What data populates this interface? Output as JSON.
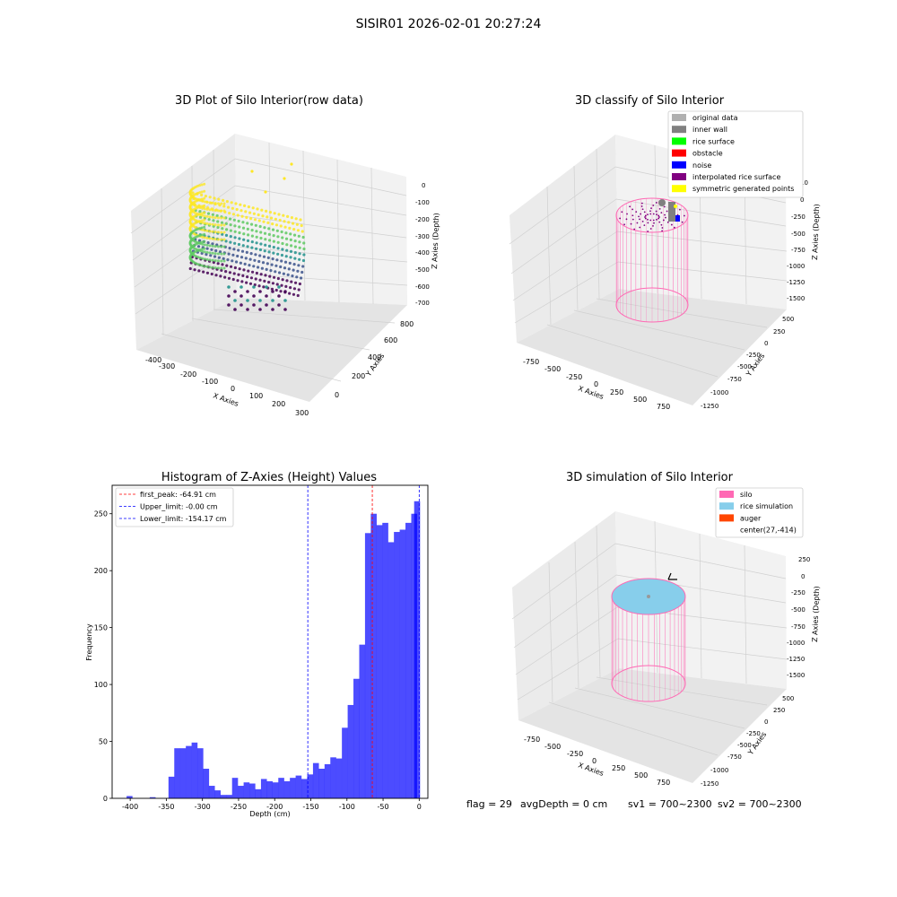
{
  "suptitle": "SISIR01 2026-02-01 20:27:24",
  "status_line": {
    "flag": "flag = 29",
    "avg_depth": "avgDepth = 0 cm",
    "sv1": "sv1 = 700~2300",
    "sv2": "sv2 = 700~2300"
  },
  "colors": {
    "histogram_bar": "#0000ff",
    "first_peak_line": "#ff0000",
    "limit_lines": "#0000ff",
    "silo": "#ff69b4",
    "rice_simulation": "#87ceeb",
    "auger": "#ff4500",
    "grid_pane": "#f2f2f2"
  },
  "chart_data": [
    {
      "type": "scatter",
      "projection": "3d",
      "title": "3D Plot of Silo Interior(row data)",
      "xlabel": "X Axies",
      "ylabel": "Y Axies",
      "zlabel": "Z Axies (Depth)",
      "x_ticks": [
        "-400",
        "-300",
        "-200",
        "-100",
        "0",
        "100",
        "200",
        "300"
      ],
      "y_ticks": [
        "0",
        "200",
        "400",
        "600",
        "800"
      ],
      "z_ticks": [
        "0",
        "-100",
        "-200",
        "-300",
        "-400",
        "-500",
        "-600",
        "-700"
      ],
      "xlim": [
        -450,
        320
      ],
      "ylim": [
        -50,
        850
      ],
      "zlim": [
        -750,
        30
      ],
      "colormap": "viridis (by depth)",
      "grid": true
    },
    {
      "type": "scatter",
      "projection": "3d",
      "title": "3D classify of Silo Interior",
      "xlabel": "X Axies",
      "ylabel": "Y Axies",
      "zlabel": "Z Axies (Depth)",
      "x_ticks": [
        "-750",
        "-500",
        "-250",
        "0",
        "250",
        "500",
        "750"
      ],
      "y_ticks": [
        "500",
        "250",
        "0",
        "-250",
        "-500",
        "-750",
        "-1000",
        "-1250"
      ],
      "z_ticks": [
        "0",
        "-250",
        "-500",
        "-750",
        "-1000",
        "-1250",
        "-1500"
      ],
      "z_extra_tick": "10",
      "legend_loc": "upper right",
      "legend": [
        {
          "label": "original data",
          "color": "#b0b0b0"
        },
        {
          "label": "inner wall",
          "color": "#808080"
        },
        {
          "label": "rice surface",
          "color": "#00ff00"
        },
        {
          "label": "obstacle",
          "color": "#ff0000"
        },
        {
          "label": "noise",
          "color": "#0000ff"
        },
        {
          "label": "interpolated rice surface",
          "color": "#800080"
        },
        {
          "label": "symmetric generated points",
          "color": "#ffff00"
        }
      ],
      "grid": true
    },
    {
      "type": "bar",
      "subtype": "histogram",
      "title": "Histogram of Z-Axies (Height) Values",
      "xlabel": "Depth (cm)",
      "ylabel": "Frequency",
      "xlim": [
        -425,
        12
      ],
      "ylim": [
        0,
        275
      ],
      "x_ticks": [
        -400,
        -350,
        -300,
        -250,
        -200,
        -150,
        -100,
        -50,
        0
      ],
      "y_ticks": [
        0,
        50,
        100,
        150,
        200,
        250
      ],
      "bin_width": 8.2,
      "bins": [
        {
          "left": -405,
          "count": 2
        },
        {
          "left": -373,
          "count": 1
        },
        {
          "left": -347,
          "count": 19
        },
        {
          "left": -339,
          "count": 44
        },
        {
          "left": -331,
          "count": 44
        },
        {
          "left": -323,
          "count": 46
        },
        {
          "left": -315,
          "count": 49
        },
        {
          "left": -307,
          "count": 44
        },
        {
          "left": -299,
          "count": 26
        },
        {
          "left": -291,
          "count": 11
        },
        {
          "left": -283,
          "count": 7
        },
        {
          "left": -275,
          "count": 3
        },
        {
          "left": -267,
          "count": 3
        },
        {
          "left": -259,
          "count": 18
        },
        {
          "left": -251,
          "count": 11
        },
        {
          "left": -243,
          "count": 14
        },
        {
          "left": -235,
          "count": 13
        },
        {
          "left": -227,
          "count": 8
        },
        {
          "left": -219,
          "count": 17
        },
        {
          "left": -211,
          "count": 15
        },
        {
          "left": -203,
          "count": 14
        },
        {
          "left": -195,
          "count": 18
        },
        {
          "left": -187,
          "count": 15
        },
        {
          "left": -179,
          "count": 18
        },
        {
          "left": -171,
          "count": 20
        },
        {
          "left": -163,
          "count": 17
        },
        {
          "left": -155,
          "count": 21
        },
        {
          "left": -147,
          "count": 31
        },
        {
          "left": -139,
          "count": 26
        },
        {
          "left": -131,
          "count": 30
        },
        {
          "left": -123,
          "count": 36
        },
        {
          "left": -115,
          "count": 35
        },
        {
          "left": -107,
          "count": 62
        },
        {
          "left": -99,
          "count": 82
        },
        {
          "left": -91,
          "count": 105
        },
        {
          "left": -83,
          "count": 135
        },
        {
          "left": -75,
          "count": 233
        },
        {
          "left": -67,
          "count": 250
        },
        {
          "left": -59,
          "count": 240
        },
        {
          "left": -51,
          "count": 242
        },
        {
          "left": -43,
          "count": 225
        },
        {
          "left": -35,
          "count": 234
        },
        {
          "left": -27,
          "count": 236
        },
        {
          "left": -19,
          "count": 242
        },
        {
          "left": -11,
          "count": 250
        },
        {
          "left": -7,
          "count": 261
        }
      ],
      "vlines": [
        {
          "label": "first_peak: -64.91 cm",
          "x": -64.91,
          "color": "#ff0000"
        },
        {
          "label": "Upper_limit: -0.00 cm",
          "x": -0.0,
          "color": "#0000ff"
        },
        {
          "label": "Lower_limit: -154.17 cm",
          "x": -154.17,
          "color": "#0000ff"
        }
      ],
      "legend_loc": "upper left",
      "grid": false
    },
    {
      "type": "scatter",
      "projection": "3d",
      "title": "3D simulation of Silo Interior",
      "xlabel": "X Axies",
      "ylabel": "Y Axies",
      "zlabel": "Z Axies (Depth)",
      "x_ticks": [
        "-750",
        "-500",
        "-250",
        "0",
        "250",
        "500",
        "750"
      ],
      "y_ticks": [
        "500",
        "250",
        "0",
        "-250",
        "-500",
        "-750",
        "-1000",
        "-1250"
      ],
      "z_ticks": [
        "250",
        "0",
        "-250",
        "-500",
        "-750",
        "-1000",
        "-1250",
        "-1500"
      ],
      "legend_loc": "upper right",
      "legend": [
        {
          "label": "silo",
          "color": "#ff69b4"
        },
        {
          "label": "rice simulation",
          "color": "#87ceeb"
        },
        {
          "label": "auger",
          "color": "#ff4500"
        },
        {
          "label": "center(27,-414)",
          "color": ""
        }
      ],
      "grid": true
    }
  ]
}
